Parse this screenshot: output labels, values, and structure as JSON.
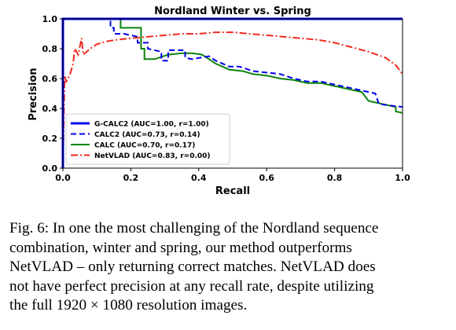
{
  "chart_data": {
    "type": "line",
    "title": "Nordland Winter vs. Spring",
    "xlabel": "Recall",
    "ylabel": "Precision",
    "xlim": [
      0.0,
      1.0
    ],
    "ylim": [
      0.0,
      1.0
    ],
    "xticks": [
      "0.0",
      "0.2",
      "0.4",
      "0.6",
      "0.8",
      "1.0"
    ],
    "yticks": [
      "0.0",
      "0.2",
      "0.4",
      "0.6",
      "0.8",
      "1.0"
    ],
    "grid": false,
    "legend_position": "lower-left",
    "series": [
      {
        "name": "G-CALC2 (AUC=1.00, r=1.00)",
        "color": "#0000ee",
        "style": "solid",
        "x": [
          0.0,
          0.0,
          1.0
        ],
        "y": [
          0.0,
          1.0,
          1.0
        ]
      },
      {
        "name": "CALC2 (AUC=0.73, r=0.14)",
        "color": "#0000ee",
        "style": "dashed",
        "x": [
          0.0,
          0.0,
          0.14,
          0.14,
          0.15,
          0.15,
          0.18,
          0.22,
          0.22,
          0.25,
          0.25,
          0.29,
          0.29,
          0.31,
          0.31,
          0.36,
          0.36,
          0.38,
          0.38,
          0.43,
          0.45,
          0.49,
          0.52,
          0.56,
          0.6,
          0.64,
          0.68,
          0.72,
          0.76,
          0.8,
          0.84,
          0.88,
          0.92,
          0.93,
          0.96,
          1.0
        ],
        "y": [
          0.0,
          1.0,
          1.0,
          0.94,
          0.94,
          0.9,
          0.9,
          0.88,
          0.84,
          0.84,
          0.8,
          0.78,
          0.72,
          0.72,
          0.79,
          0.79,
          0.74,
          0.73,
          0.73,
          0.75,
          0.72,
          0.68,
          0.68,
          0.65,
          0.64,
          0.63,
          0.6,
          0.58,
          0.58,
          0.56,
          0.54,
          0.52,
          0.5,
          0.43,
          0.42,
          0.41
        ]
      },
      {
        "name": "CALC (AUC=0.70, r=0.17)",
        "color": "#0a840a",
        "style": "solid",
        "x": [
          0.0,
          0.0,
          0.17,
          0.17,
          0.23,
          0.23,
          0.24,
          0.24,
          0.27,
          0.31,
          0.35,
          0.38,
          0.41,
          0.43,
          0.45,
          0.49,
          0.53,
          0.56,
          0.6,
          0.64,
          0.68,
          0.72,
          0.76,
          0.8,
          0.84,
          0.88,
          0.9,
          0.94,
          0.98,
          0.98,
          1.0
        ],
        "y": [
          0.0,
          1.0,
          1.0,
          0.94,
          0.94,
          0.8,
          0.8,
          0.73,
          0.73,
          0.76,
          0.77,
          0.77,
          0.76,
          0.73,
          0.7,
          0.66,
          0.65,
          0.63,
          0.62,
          0.6,
          0.59,
          0.57,
          0.57,
          0.55,
          0.53,
          0.51,
          0.45,
          0.43,
          0.41,
          0.38,
          0.37
        ]
      },
      {
        "name": "NetVLAD (AUC=0.83, r=0.00)",
        "color": "#ee2a1e",
        "style": "dashdot",
        "x": [
          0.0,
          0.005,
          0.01,
          0.02,
          0.03,
          0.035,
          0.045,
          0.055,
          0.06,
          0.08,
          0.1,
          0.13,
          0.16,
          0.2,
          0.25,
          0.3,
          0.35,
          0.4,
          0.45,
          0.5,
          0.55,
          0.6,
          0.65,
          0.7,
          0.75,
          0.8,
          0.85,
          0.9,
          0.95,
          0.98,
          1.0
        ],
        "y": [
          0.0,
          0.62,
          0.58,
          0.62,
          0.7,
          0.8,
          0.76,
          0.87,
          0.76,
          0.8,
          0.83,
          0.85,
          0.86,
          0.87,
          0.88,
          0.89,
          0.9,
          0.9,
          0.91,
          0.91,
          0.9,
          0.89,
          0.88,
          0.87,
          0.86,
          0.84,
          0.81,
          0.78,
          0.74,
          0.69,
          0.63
        ]
      }
    ]
  },
  "caption": {
    "lines": [
      "Fig. 6: In one the most challenging of the Nordland sequence",
      "combination, winter and spring, our method outperforms",
      "NetVLAD – only returning correct matches. NetVLAD does",
      "not have perfect precision at any recall rate, despite utilizing",
      "the full 1920 × 1080 resolution images."
    ]
  }
}
